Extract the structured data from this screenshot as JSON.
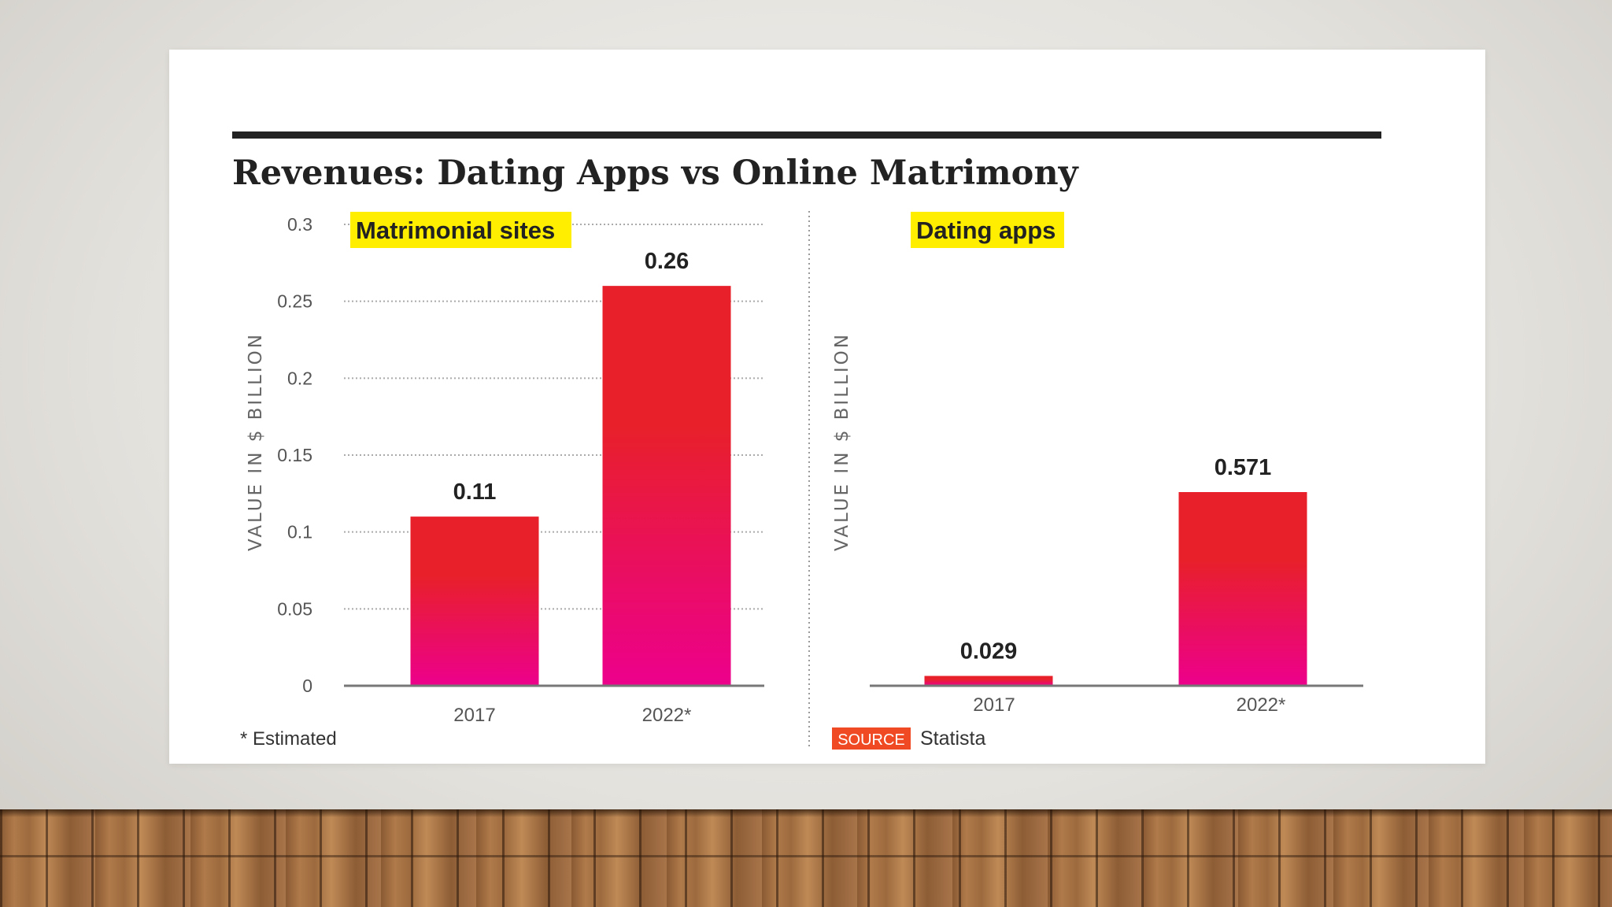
{
  "title": "Revenues: Dating Apps vs Online Matrimony",
  "colors": {
    "bar_top": "#e8202a",
    "bar_bottom": "#ec008c",
    "highlight": "#ffee00",
    "source_badge": "#ef4a23",
    "rule": "#222222"
  },
  "footnote": "* Estimated",
  "source": {
    "badge": "SOURCE",
    "text": "Statista"
  },
  "chart_data": [
    {
      "type": "bar",
      "panel_label": "Matrimonial sites",
      "categories": [
        "2017",
        "2022*"
      ],
      "values": [
        0.11,
        0.26
      ],
      "value_labels": [
        "0.11",
        "0.26"
      ],
      "ylabel": "VALUE IN $ BILLION",
      "ylim": [
        0,
        0.3
      ],
      "yticks": [
        "0",
        "0.05",
        "0.1",
        "0.15",
        "0.2",
        "0.25",
        "0.3"
      ],
      "grid": true
    },
    {
      "type": "bar",
      "panel_label": "Dating apps",
      "categories": [
        "2017",
        "2022*"
      ],
      "values": [
        0.029,
        0.571
      ],
      "value_labels": [
        "0.029",
        "0.571"
      ],
      "ylabel": "VALUE IN $ BILLION",
      "grid": false
    }
  ]
}
